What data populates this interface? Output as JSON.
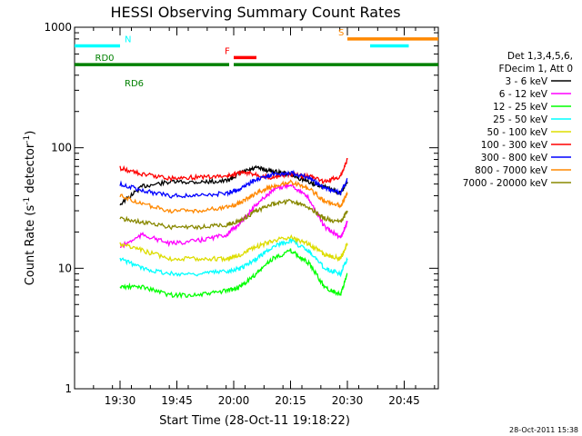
{
  "chart_data": {
    "type": "line",
    "title": "HESSI Observing Summary Count Rates",
    "xlabel": "Start Time (28-Oct-11 19:18:22)",
    "ylabel_main": "Count Rate (s",
    "ylabel_sup1": "-1",
    "ylabel_mid": " detector",
    "ylabel_sup2": "-1",
    "ylabel_end": ")",
    "y_scale": "log",
    "ylim": [
      1,
      1000
    ],
    "xlim_minutes": [
      19.3,
      20.9
    ],
    "xticks": [
      {
        "t": 19.5,
        "label": "19:30"
      },
      {
        "t": 19.75,
        "label": "19:45"
      },
      {
        "t": 20.0,
        "label": "20:00"
      },
      {
        "t": 20.25,
        "label": "20:15"
      },
      {
        "t": 20.5,
        "label": "20:30"
      },
      {
        "t": 20.75,
        "label": "20:45"
      }
    ],
    "yticks": [
      {
        "v": 1,
        "label": "1"
      },
      {
        "v": 10,
        "label": "10"
      },
      {
        "v": 100,
        "label": "100"
      },
      {
        "v": 1000,
        "label": "1000"
      }
    ],
    "legend_header": [
      "Det 1,3,4,5,6,",
      "FDecim 1, Att 0"
    ],
    "legend_placement": "right",
    "series": [
      {
        "name": "3 - 6 keV",
        "color": "#000000",
        "x": [
          19.5,
          19.6,
          19.72,
          19.85,
          19.97,
          20.03,
          20.1,
          20.17,
          20.25,
          20.33,
          20.4,
          20.47,
          20.5
        ],
        "values": [
          34,
          48,
          52,
          52,
          53,
          62,
          68,
          64,
          60,
          52,
          47,
          42,
          52
        ]
      },
      {
        "name": "6 - 12 keV",
        "color": "#ff00ff",
        "x": [
          19.5,
          19.6,
          19.72,
          19.85,
          19.97,
          20.03,
          20.1,
          20.17,
          20.25,
          20.33,
          20.4,
          20.47,
          20.5
        ],
        "values": [
          15,
          19,
          16,
          17,
          19,
          24,
          34,
          44,
          50,
          38,
          22,
          18,
          24
        ]
      },
      {
        "name": "12 - 25 keV",
        "color": "#00ff00",
        "x": [
          19.5,
          19.6,
          19.72,
          19.85,
          19.97,
          20.03,
          20.1,
          20.17,
          20.25,
          20.33,
          20.4,
          20.47,
          20.5
        ],
        "values": [
          7,
          7,
          6,
          6,
          6.5,
          7,
          9,
          12,
          14,
          11,
          7,
          6,
          9
        ]
      },
      {
        "name": "25 - 50 keV",
        "color": "#00ffff",
        "x": [
          19.5,
          19.6,
          19.72,
          19.85,
          19.97,
          20.03,
          20.1,
          20.17,
          20.25,
          20.33,
          20.4,
          20.47,
          20.5
        ],
        "values": [
          12,
          10,
          9,
          9,
          9.5,
          10,
          12,
          15,
          17,
          14,
          10,
          9,
          12
        ]
      },
      {
        "name": "50 - 100 keV",
        "color": "#dddd00",
        "x": [
          19.5,
          19.6,
          19.72,
          19.85,
          19.97,
          20.03,
          20.1,
          20.17,
          20.25,
          20.33,
          20.4,
          20.47,
          20.5
        ],
        "values": [
          16,
          14,
          12,
          12,
          12,
          13,
          15,
          17,
          18,
          16,
          13,
          12,
          16
        ]
      },
      {
        "name": "100 - 300 keV",
        "color": "#ff0000",
        "x": [
          19.5,
          19.6,
          19.72,
          19.85,
          19.97,
          20.03,
          20.1,
          20.17,
          20.25,
          20.33,
          20.4,
          20.47,
          20.5
        ],
        "values": [
          68,
          60,
          56,
          57,
          58,
          62,
          60,
          56,
          60,
          58,
          52,
          58,
          80
        ]
      },
      {
        "name": "300 - 800 keV",
        "color": "#0000ff",
        "x": [
          19.5,
          19.6,
          19.72,
          19.85,
          19.97,
          20.03,
          20.1,
          20.17,
          20.25,
          20.33,
          20.4,
          20.47,
          20.5
        ],
        "values": [
          50,
          44,
          40,
          40,
          42,
          46,
          55,
          60,
          62,
          56,
          46,
          42,
          55
        ]
      },
      {
        "name": "800 - 7000 keV",
        "color": "#ff8800",
        "x": [
          19.5,
          19.6,
          19.72,
          19.85,
          19.97,
          20.03,
          20.1,
          20.17,
          20.25,
          20.33,
          20.4,
          20.47,
          20.5
        ],
        "values": [
          40,
          34,
          30,
          30,
          32,
          35,
          42,
          48,
          52,
          46,
          36,
          33,
          42
        ]
      },
      {
        "name": "7000 - 20000 keV",
        "color": "#888800",
        "x": [
          19.5,
          19.6,
          19.72,
          19.85,
          19.97,
          20.03,
          20.1,
          20.17,
          20.25,
          20.33,
          20.4,
          20.47,
          20.5
        ],
        "values": [
          26,
          24,
          22,
          22,
          23,
          25,
          30,
          34,
          36,
          32,
          26,
          24,
          30
        ]
      }
    ],
    "flags": [
      {
        "label": "N",
        "color": "#00ffff",
        "label_t": 19.52,
        "segments": [
          [
            19.3,
            19.5
          ],
          [
            20.6,
            20.77
          ]
        ],
        "level": 700
      },
      {
        "label": "F",
        "color": "#ff0000",
        "label_t": 19.96,
        "segments": [
          [
            20.0,
            20.1
          ]
        ],
        "level": 560
      },
      {
        "label": "S",
        "color": "#ff8800",
        "label_t": 20.46,
        "segments": [
          [
            20.5,
            20.9
          ]
        ],
        "level": 800
      },
      {
        "label": "RD0",
        "color": "#008000",
        "label_t": 19.39,
        "segments": [
          [
            19.3,
            19.5
          ],
          [
            19.5,
            19.98
          ],
          [
            20.0,
            20.4
          ],
          [
            20.4,
            20.9
          ]
        ],
        "level": 490
      },
      {
        "label": "RD6",
        "color": "#008000",
        "label_t": 19.52,
        "segments": [],
        "level": 420
      }
    ]
  },
  "footer_timestamp": "28-Oct-2011 15:38"
}
